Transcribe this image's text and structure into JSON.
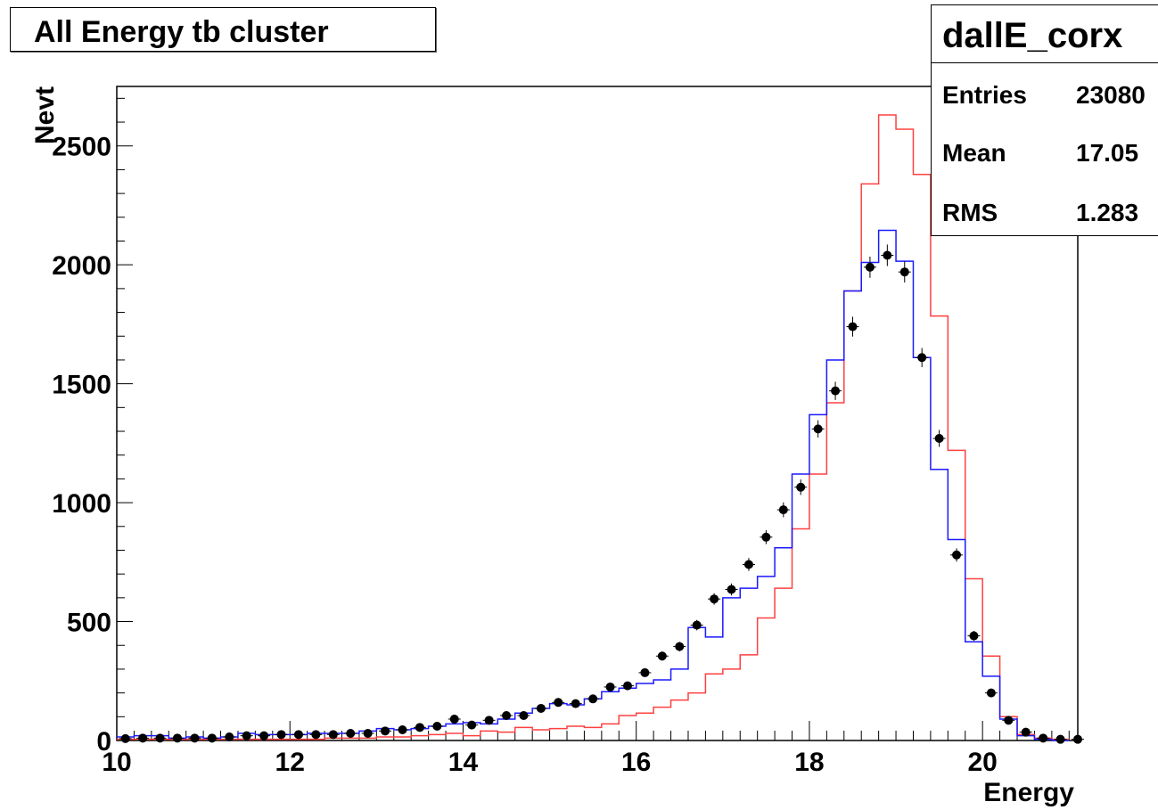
{
  "title": "All Energy tb cluster",
  "stats": {
    "name": "dallE_corx",
    "rows": [
      {
        "label": "Entries",
        "value": "23080"
      },
      {
        "label": "Mean",
        "value": "17.05"
      },
      {
        "label": "RMS",
        "value": "1.283"
      }
    ]
  },
  "chart_data": {
    "type": "histogram",
    "xlabel": "Energy",
    "ylabel": "Nevt",
    "xlim": [
      10,
      21.1
    ],
    "ylim": [
      0,
      2750
    ],
    "x_ticks": [
      10,
      12,
      14,
      16,
      18,
      20
    ],
    "y_ticks": [
      0,
      500,
      1000,
      1500,
      2000,
      2500
    ],
    "bin_width": 0.2,
    "bin_start": 10,
    "series": [
      {
        "style": "points",
        "color": "#000000",
        "values": [
          8,
          10,
          10,
          10,
          10,
          10,
          15,
          20,
          20,
          25,
          25,
          25,
          25,
          30,
          30,
          40,
          45,
          55,
          60,
          90,
          65,
          85,
          105,
          105,
          135,
          160,
          155,
          175,
          225,
          230,
          285,
          355,
          395,
          485,
          595,
          635,
          740,
          855,
          970,
          1065,
          1310,
          1470,
          1740,
          1990,
          2040,
          1970,
          1610,
          1270,
          780,
          440,
          200,
          85,
          35,
          10,
          5,
          5,
          5,
          5,
          0,
          0,
          0,
          0,
          0,
          0,
          0,
          0,
          0,
          0,
          0,
          0,
          0,
          0,
          0,
          0,
          0,
          0,
          0,
          0,
          0,
          0,
          0,
          0,
          0,
          5,
          0
        ]
      },
      {
        "style": "step",
        "color": "#1a1aff",
        "values": [
          15,
          20,
          20,
          10,
          15,
          10,
          15,
          30,
          25,
          25,
          25,
          30,
          30,
          30,
          40,
          50,
          45,
          50,
          60,
          70,
          75,
          70,
          90,
          115,
          135,
          155,
          150,
          175,
          205,
          220,
          240,
          255,
          300,
          475,
          435,
          600,
          640,
          690,
          810,
          1120,
          1370,
          1600,
          1890,
          2010,
          2145,
          2015,
          1610,
          1140,
          845,
          415,
          270,
          90,
          20,
          5,
          0,
          0,
          0,
          0,
          0,
          0,
          0,
          0,
          0,
          0,
          0,
          0,
          0,
          0,
          0,
          0,
          0,
          0,
          0,
          0,
          0,
          0,
          0,
          0,
          0,
          0,
          0,
          0,
          0,
          0,
          0
        ]
      },
      {
        "style": "step",
        "color": "#ff4040",
        "values": [
          5,
          5,
          5,
          5,
          5,
          5,
          5,
          5,
          5,
          5,
          5,
          5,
          10,
          10,
          10,
          15,
          15,
          20,
          25,
          30,
          20,
          40,
          35,
          55,
          45,
          50,
          60,
          55,
          70,
          105,
          115,
          140,
          170,
          200,
          280,
          300,
          360,
          515,
          640,
          890,
          1120,
          1420,
          1890,
          2340,
          2630,
          2570,
          2380,
          1785,
          1220,
          680,
          355,
          100,
          25,
          10,
          5,
          5,
          5,
          5,
          5,
          5,
          5,
          5,
          5,
          5,
          5,
          5,
          5,
          5,
          5,
          5,
          5,
          5,
          5,
          5,
          5,
          5,
          5,
          5,
          5,
          5,
          5,
          5,
          5,
          5,
          5
        ]
      }
    ]
  }
}
